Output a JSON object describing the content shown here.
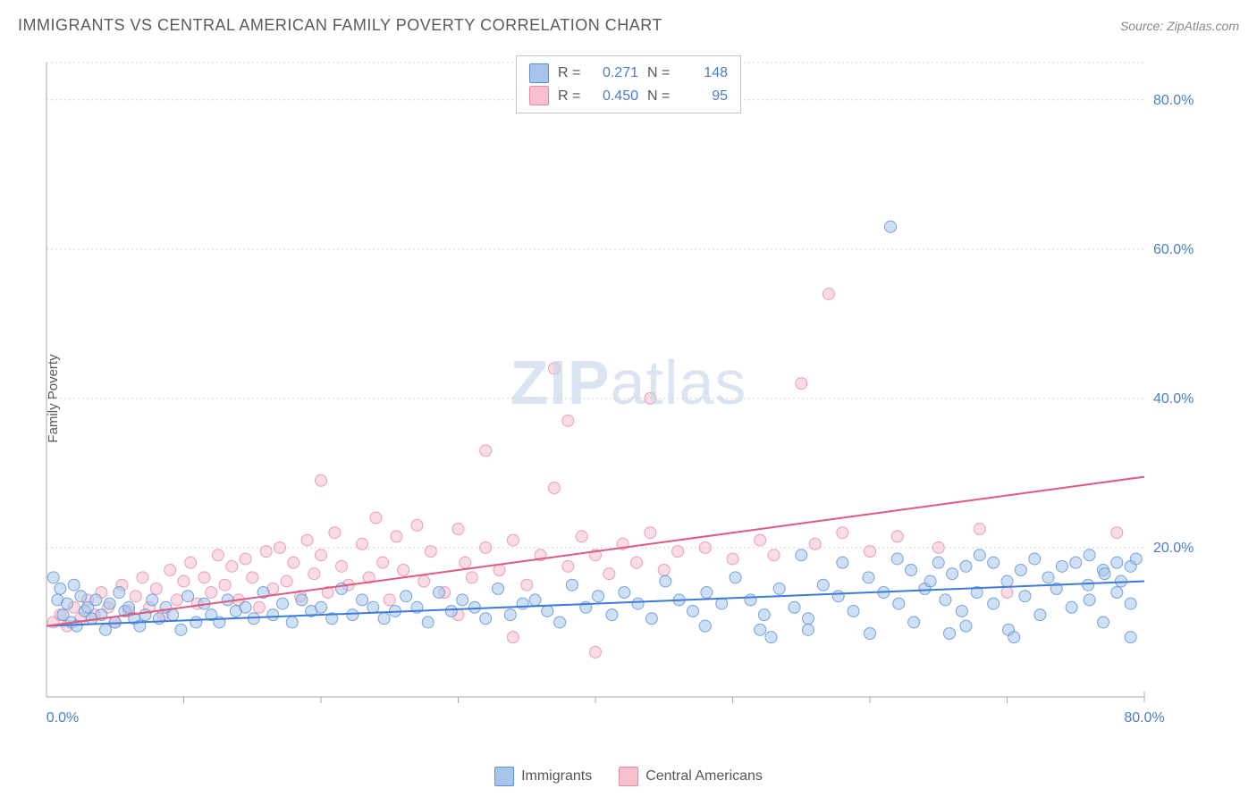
{
  "title": "IMMIGRANTS VS CENTRAL AMERICAN FAMILY POVERTY CORRELATION CHART",
  "source": "Source: ZipAtlas.com",
  "ylabel": "Family Poverty",
  "watermark_zip": "ZIP",
  "watermark_atlas": "atlas",
  "chart": {
    "type": "scatter",
    "xlim": [
      0,
      80
    ],
    "ylim": [
      0,
      85
    ],
    "xtick_step": 10,
    "yticks": [
      20,
      40,
      60,
      80
    ],
    "xlabel_min": "0.0%",
    "xlabel_max": "80.0%",
    "ytick_labels": [
      "20.0%",
      "40.0%",
      "60.0%",
      "80.0%"
    ],
    "background_color": "#ffffff",
    "grid_color": "#d0d0d0",
    "axis_color": "#aaaaaa",
    "marker_radius": 6.5,
    "marker_opacity": 0.55,
    "series": [
      {
        "name": "Immigrants",
        "color_fill": "#a7c5eb",
        "color_stroke": "#5a8fd6",
        "R": "0.271",
        "N": "148",
        "trend": {
          "x1": 0,
          "y1": 9.5,
          "x2": 80,
          "y2": 15.5,
          "color": "#3d7bd9",
          "width": 2
        },
        "points": [
          [
            0.5,
            16
          ],
          [
            0.8,
            13
          ],
          [
            1,
            14.5
          ],
          [
            1.2,
            11
          ],
          [
            1.5,
            12.5
          ],
          [
            1.8,
            10
          ],
          [
            2,
            15
          ],
          [
            2.2,
            9.5
          ],
          [
            2.5,
            13.5
          ],
          [
            2.8,
            11.5
          ],
          [
            3,
            12
          ],
          [
            3.3,
            10.5
          ],
          [
            3.6,
            13
          ],
          [
            4,
            11
          ],
          [
            4.3,
            9
          ],
          [
            4.6,
            12.5
          ],
          [
            5,
            10
          ],
          [
            5.3,
            14
          ],
          [
            5.7,
            11.5
          ],
          [
            6,
            12
          ],
          [
            6.4,
            10.5
          ],
          [
            6.8,
            9.5
          ],
          [
            7.2,
            11
          ],
          [
            7.7,
            13
          ],
          [
            8.2,
            10.5
          ],
          [
            8.7,
            12
          ],
          [
            9.2,
            11
          ],
          [
            9.8,
            9
          ],
          [
            10.3,
            13.5
          ],
          [
            10.9,
            10
          ],
          [
            11.5,
            12.5
          ],
          [
            12,
            11
          ],
          [
            12.6,
            10
          ],
          [
            13.2,
            13
          ],
          [
            13.8,
            11.5
          ],
          [
            14.5,
            12
          ],
          [
            15.1,
            10.5
          ],
          [
            15.8,
            14
          ],
          [
            16.5,
            11
          ],
          [
            17.2,
            12.5
          ],
          [
            17.9,
            10
          ],
          [
            18.6,
            13
          ],
          [
            19.3,
            11.5
          ],
          [
            20,
            12
          ],
          [
            20.8,
            10.5
          ],
          [
            21.5,
            14.5
          ],
          [
            22.3,
            11
          ],
          [
            23,
            13
          ],
          [
            23.8,
            12
          ],
          [
            24.6,
            10.5
          ],
          [
            25.4,
            11.5
          ],
          [
            26.2,
            13.5
          ],
          [
            27,
            12
          ],
          [
            27.8,
            10
          ],
          [
            28.6,
            14
          ],
          [
            29.5,
            11.5
          ],
          [
            30.3,
            13
          ],
          [
            31.2,
            12
          ],
          [
            32,
            10.5
          ],
          [
            32.9,
            14.5
          ],
          [
            33.8,
            11
          ],
          [
            34.7,
            12.5
          ],
          [
            35.6,
            13
          ],
          [
            36.5,
            11.5
          ],
          [
            37.4,
            10
          ],
          [
            38.3,
            15
          ],
          [
            39.3,
            12
          ],
          [
            40.2,
            13.5
          ],
          [
            41.2,
            11
          ],
          [
            42.1,
            14
          ],
          [
            43.1,
            12.5
          ],
          [
            44.1,
            10.5
          ],
          [
            45.1,
            15.5
          ],
          [
            46.1,
            13
          ],
          [
            47.1,
            11.5
          ],
          [
            48.1,
            14
          ],
          [
            49.2,
            12.5
          ],
          [
            50.2,
            16
          ],
          [
            51.3,
            13
          ],
          [
            52.3,
            11
          ],
          [
            52.8,
            8
          ],
          [
            53.4,
            14.5
          ],
          [
            54.5,
            12
          ],
          [
            55,
            19
          ],
          [
            55.5,
            10.5
          ],
          [
            56.6,
            15
          ],
          [
            57.7,
            13.5
          ],
          [
            58,
            18
          ],
          [
            58.8,
            11.5
          ],
          [
            59.9,
            16
          ],
          [
            60,
            8.5
          ],
          [
            61,
            14
          ],
          [
            62,
            18.5
          ],
          [
            62.1,
            12.5
          ],
          [
            63,
            17
          ],
          [
            63.2,
            10
          ],
          [
            64,
            14.5
          ],
          [
            64.4,
            15.5
          ],
          [
            65,
            18
          ],
          [
            65.5,
            13
          ],
          [
            66,
            16.5
          ],
          [
            66.7,
            11.5
          ],
          [
            67,
            17.5
          ],
          [
            67.8,
            14
          ],
          [
            68,
            19
          ],
          [
            69,
            12.5
          ],
          [
            69,
            18
          ],
          [
            70,
            15.5
          ],
          [
            70.1,
            9
          ],
          [
            71,
            17
          ],
          [
            71.3,
            13.5
          ],
          [
            72,
            18.5
          ],
          [
            72.4,
            11
          ],
          [
            73,
            16
          ],
          [
            73.6,
            14.5
          ],
          [
            74,
            17.5
          ],
          [
            74.7,
            12
          ],
          [
            75,
            18
          ],
          [
            75.9,
            15
          ],
          [
            76,
            13
          ],
          [
            76,
            19
          ],
          [
            77,
            17
          ],
          [
            77,
            10
          ],
          [
            77.1,
            16.5
          ],
          [
            78,
            18
          ],
          [
            78,
            14
          ],
          [
            78.3,
            15.5
          ],
          [
            79,
            17.5
          ],
          [
            79,
            12.5
          ],
          [
            79.4,
            18.5
          ],
          [
            61.5,
            63
          ],
          [
            79,
            8
          ],
          [
            65.8,
            8.5
          ],
          [
            52,
            9
          ],
          [
            48,
            9.5
          ],
          [
            55.5,
            9
          ],
          [
            67,
            9.5
          ],
          [
            70.5,
            8
          ]
        ]
      },
      {
        "name": "Central Americans",
        "color_fill": "#f6c0cd",
        "color_stroke": "#e68aa4",
        "R": "0.450",
        "N": "95",
        "trend": {
          "x1": 0,
          "y1": 9.5,
          "x2": 80,
          "y2": 29.5,
          "color": "#e05a80",
          "width": 2
        },
        "points": [
          [
            0.5,
            10
          ],
          [
            1,
            11
          ],
          [
            1.5,
            9.5
          ],
          [
            2,
            12
          ],
          [
            2.5,
            10.5
          ],
          [
            3,
            13
          ],
          [
            3.5,
            11
          ],
          [
            4,
            14
          ],
          [
            4.5,
            12
          ],
          [
            5,
            10
          ],
          [
            5.5,
            15
          ],
          [
            6,
            11.5
          ],
          [
            6.5,
            13.5
          ],
          [
            7,
            16
          ],
          [
            7.5,
            12
          ],
          [
            8,
            14.5
          ],
          [
            8.5,
            11
          ],
          [
            9,
            17
          ],
          [
            9.5,
            13
          ],
          [
            10,
            15.5
          ],
          [
            10.5,
            18
          ],
          [
            11,
            12.5
          ],
          [
            11.5,
            16
          ],
          [
            12,
            14
          ],
          [
            12.5,
            19
          ],
          [
            13,
            15
          ],
          [
            13.5,
            17.5
          ],
          [
            14,
            13
          ],
          [
            14.5,
            18.5
          ],
          [
            15,
            16
          ],
          [
            15.5,
            12
          ],
          [
            16,
            19.5
          ],
          [
            16.5,
            14.5
          ],
          [
            17,
            20
          ],
          [
            17.5,
            15.5
          ],
          [
            18,
            18
          ],
          [
            18.5,
            13.5
          ],
          [
            19,
            21
          ],
          [
            19.5,
            16.5
          ],
          [
            20,
            19
          ],
          [
            20,
            29
          ],
          [
            20.5,
            14
          ],
          [
            21,
            22
          ],
          [
            21.5,
            17.5
          ],
          [
            22,
            15
          ],
          [
            23,
            20.5
          ],
          [
            23.5,
            16
          ],
          [
            24,
            24
          ],
          [
            24.5,
            18
          ],
          [
            25,
            13
          ],
          [
            25.5,
            21.5
          ],
          [
            26,
            17
          ],
          [
            27,
            23
          ],
          [
            27.5,
            15.5
          ],
          [
            28,
            19.5
          ],
          [
            29,
            14
          ],
          [
            30,
            22.5
          ],
          [
            30.5,
            18
          ],
          [
            31,
            16
          ],
          [
            32,
            20
          ],
          [
            32,
            33
          ],
          [
            33,
            17
          ],
          [
            34,
            21
          ],
          [
            35,
            15
          ],
          [
            36,
            19
          ],
          [
            37,
            44
          ],
          [
            37,
            28
          ],
          [
            38,
            17.5
          ],
          [
            38,
            37
          ],
          [
            39,
            21.5
          ],
          [
            40,
            19
          ],
          [
            41,
            16.5
          ],
          [
            42,
            20.5
          ],
          [
            43,
            18
          ],
          [
            44,
            22
          ],
          [
            44,
            40
          ],
          [
            45,
            17
          ],
          [
            46,
            19.5
          ],
          [
            48,
            20
          ],
          [
            50,
            18.5
          ],
          [
            52,
            21
          ],
          [
            53,
            19
          ],
          [
            55,
            42
          ],
          [
            56,
            20.5
          ],
          [
            57,
            54
          ],
          [
            58,
            22
          ],
          [
            60,
            19.5
          ],
          [
            62,
            21.5
          ],
          [
            65,
            20
          ],
          [
            68,
            22.5
          ],
          [
            70,
            14
          ],
          [
            78,
            22
          ],
          [
            34,
            8
          ],
          [
            40,
            6
          ],
          [
            30,
            11
          ]
        ]
      }
    ]
  },
  "legend_top": {
    "r_label": "R =",
    "n_label": "N ="
  },
  "legend_bottom": {
    "label1": "Immigrants",
    "label2": "Central Americans"
  }
}
